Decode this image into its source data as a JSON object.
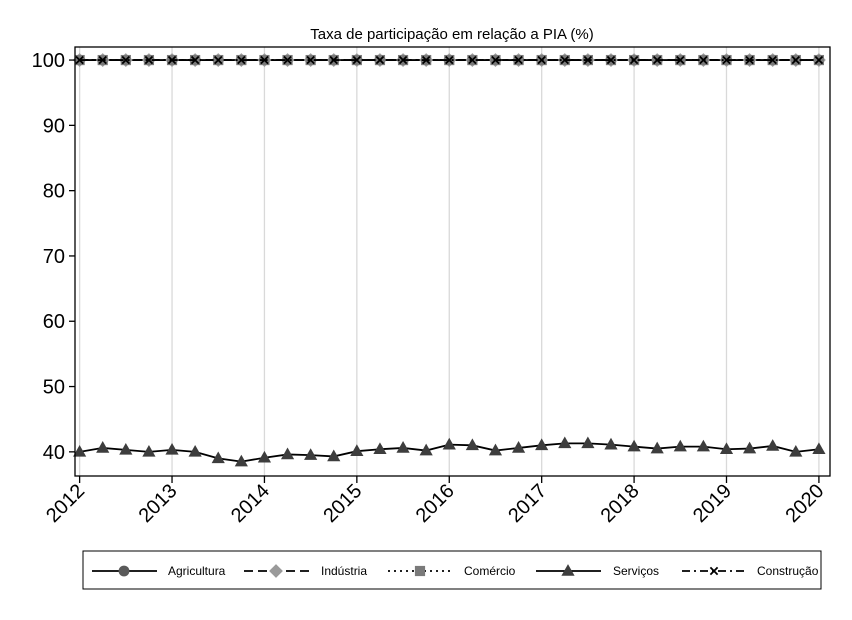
{
  "chart_data": {
    "type": "line",
    "title": "Taxa de participação em relação a PIA (%)",
    "xlabel": "",
    "ylabel": "",
    "x": [
      2012.0,
      2012.25,
      2012.5,
      2012.75,
      2013.0,
      2013.25,
      2013.5,
      2013.75,
      2014.0,
      2014.25,
      2014.5,
      2014.75,
      2015.0,
      2015.25,
      2015.5,
      2015.75,
      2016.0,
      2016.25,
      2016.5,
      2016.75,
      2017.0,
      2017.25,
      2017.5,
      2017.75,
      2018.0,
      2018.25,
      2018.5,
      2018.75,
      2019.0,
      2019.25,
      2019.5,
      2019.75,
      2020.0
    ],
    "x_ticks": [
      "2012",
      "2013",
      "2014",
      "2015",
      "2016",
      "2017",
      "2018",
      "2019",
      "2020"
    ],
    "y_ticks": [
      40,
      50,
      60,
      70,
      80,
      90,
      100
    ],
    "xlim": [
      2011.95,
      2020.12
    ],
    "ylim": [
      36.3,
      102
    ],
    "grid": "vertical",
    "legend_position": "bottom",
    "series": [
      {
        "name": "Agricultura",
        "marker": "circle",
        "dash": "solid",
        "values": [
          100,
          100,
          100,
          100,
          100,
          100,
          100,
          100,
          100,
          100,
          100,
          100,
          100,
          100,
          100,
          100,
          100,
          100,
          100,
          100,
          100,
          100,
          100,
          100,
          100,
          100,
          100,
          100,
          100,
          100,
          100,
          100,
          100
        ]
      },
      {
        "name": "Indústria",
        "marker": "diamond",
        "dash": "dash",
        "values": [
          100,
          100,
          100,
          100,
          100,
          100,
          100,
          100,
          100,
          100,
          100,
          100,
          100,
          100,
          100,
          100,
          100,
          100,
          100,
          100,
          100,
          100,
          100,
          100,
          100,
          100,
          100,
          100,
          100,
          100,
          100,
          100,
          100
        ]
      },
      {
        "name": "Comércio",
        "marker": "square",
        "dash": "dot",
        "values": [
          100,
          100,
          100,
          100,
          100,
          100,
          100,
          100,
          100,
          100,
          100,
          100,
          100,
          100,
          100,
          100,
          100,
          100,
          100,
          100,
          100,
          100,
          100,
          100,
          100,
          100,
          100,
          100,
          100,
          100,
          100,
          100,
          100
        ]
      },
      {
        "name": "Serviços",
        "marker": "triangle",
        "dash": "solid",
        "values": [
          40.0,
          40.6,
          40.3,
          40.0,
          40.3,
          40.0,
          39.0,
          38.5,
          39.1,
          39.6,
          39.5,
          39.3,
          40.1,
          40.4,
          40.6,
          40.2,
          41.1,
          41.0,
          40.2,
          40.6,
          41.0,
          41.3,
          41.3,
          41.1,
          40.8,
          40.5,
          40.8,
          40.8,
          40.4,
          40.5,
          40.9,
          40.0,
          40.4
        ]
      },
      {
        "name": "Construção",
        "marker": "x",
        "dash": "dashdot",
        "values": [
          100,
          100,
          100,
          100,
          100,
          100,
          100,
          100,
          100,
          100,
          100,
          100,
          100,
          100,
          100,
          100,
          100,
          100,
          100,
          100,
          100,
          100,
          100,
          100,
          100,
          100,
          100,
          100,
          100,
          100,
          100,
          100,
          100
        ]
      }
    ]
  }
}
